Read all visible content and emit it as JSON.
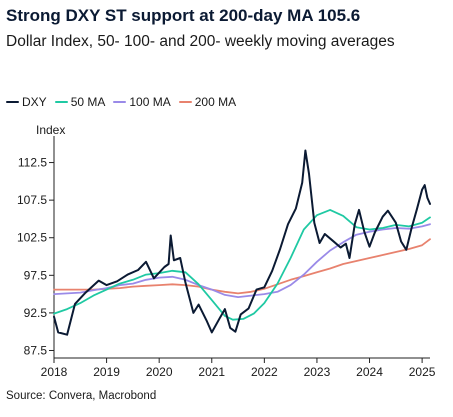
{
  "chart_data": {
    "type": "line",
    "title": "Strong DXY ST support at 200-day MA 105.6",
    "subtitle": "Dollar Index, 50- 100- and 200- weekly moving averages",
    "ylabel": "Index",
    "source": "Source: Convera, Macrobond",
    "ylim": [
      86.5,
      115.5
    ],
    "xlim": [
      2018.0,
      2025.15
    ],
    "y_ticks": [
      "87.5",
      "92.5",
      "97.5",
      "102.5",
      "107.5",
      "112.5"
    ],
    "x_ticks": [
      "2018",
      "2019",
      "2020",
      "2021",
      "2022",
      "2023",
      "2024",
      "2025"
    ],
    "grid": "none",
    "legend_position": "top",
    "series": [
      {
        "name": "DXY",
        "color": "#0b1a33",
        "points": [
          [
            2018.0,
            92.0
          ],
          [
            2018.08,
            89.9
          ],
          [
            2018.25,
            89.6
          ],
          [
            2018.4,
            93.7
          ],
          [
            2018.6,
            95.2
          ],
          [
            2018.85,
            96.8
          ],
          [
            2019.0,
            96.2
          ],
          [
            2019.2,
            96.7
          ],
          [
            2019.4,
            97.6
          ],
          [
            2019.6,
            98.2
          ],
          [
            2019.75,
            99.3
          ],
          [
            2019.9,
            97.1
          ],
          [
            2020.1,
            98.6
          ],
          [
            2020.18,
            99.0
          ],
          [
            2020.22,
            102.8
          ],
          [
            2020.28,
            99.5
          ],
          [
            2020.4,
            99.8
          ],
          [
            2020.5,
            96.5
          ],
          [
            2020.65,
            92.5
          ],
          [
            2020.75,
            93.6
          ],
          [
            2020.9,
            91.5
          ],
          [
            2021.0,
            89.9
          ],
          [
            2021.15,
            91.8
          ],
          [
            2021.25,
            93.0
          ],
          [
            2021.35,
            90.5
          ],
          [
            2021.45,
            90.0
          ],
          [
            2021.55,
            92.3
          ],
          [
            2021.7,
            93.1
          ],
          [
            2021.85,
            95.6
          ],
          [
            2022.0,
            95.9
          ],
          [
            2022.15,
            98.1
          ],
          [
            2022.3,
            101.0
          ],
          [
            2022.45,
            104.3
          ],
          [
            2022.6,
            106.4
          ],
          [
            2022.72,
            109.8
          ],
          [
            2022.78,
            114.1
          ],
          [
            2022.85,
            111.0
          ],
          [
            2022.95,
            104.5
          ],
          [
            2023.05,
            101.8
          ],
          [
            2023.15,
            103.0
          ],
          [
            2023.3,
            102.1
          ],
          [
            2023.45,
            101.2
          ],
          [
            2023.55,
            101.7
          ],
          [
            2023.62,
            99.8
          ],
          [
            2023.72,
            104.3
          ],
          [
            2023.8,
            106.2
          ],
          [
            2023.9,
            103.3
          ],
          [
            2024.0,
            101.3
          ],
          [
            2024.1,
            103.2
          ],
          [
            2024.25,
            105.3
          ],
          [
            2024.35,
            106.1
          ],
          [
            2024.5,
            104.5
          ],
          [
            2024.6,
            102.0
          ],
          [
            2024.7,
            100.9
          ],
          [
            2024.8,
            103.8
          ],
          [
            2024.9,
            106.3
          ],
          [
            2025.0,
            108.9
          ],
          [
            2025.05,
            109.5
          ],
          [
            2025.1,
            107.8
          ],
          [
            2025.15,
            107.0
          ]
        ]
      },
      {
        "name": "50 MA",
        "color": "#1fc9a3",
        "points": [
          [
            2018.0,
            92.4
          ],
          [
            2018.25,
            93.0
          ],
          [
            2018.5,
            93.8
          ],
          [
            2018.75,
            94.8
          ],
          [
            2019.0,
            95.6
          ],
          [
            2019.25,
            96.4
          ],
          [
            2019.5,
            96.9
          ],
          [
            2019.75,
            97.6
          ],
          [
            2020.0,
            97.8
          ],
          [
            2020.25,
            98.1
          ],
          [
            2020.5,
            97.9
          ],
          [
            2020.75,
            96.3
          ],
          [
            2021.0,
            94.2
          ],
          [
            2021.25,
            92.1
          ],
          [
            2021.4,
            91.6
          ],
          [
            2021.6,
            91.7
          ],
          [
            2021.8,
            92.4
          ],
          [
            2022.0,
            93.8
          ],
          [
            2022.25,
            96.4
          ],
          [
            2022.5,
            99.8
          ],
          [
            2022.75,
            103.6
          ],
          [
            2023.0,
            105.5
          ],
          [
            2023.25,
            106.2
          ],
          [
            2023.5,
            105.4
          ],
          [
            2023.75,
            103.9
          ],
          [
            2024.0,
            103.6
          ],
          [
            2024.25,
            103.8
          ],
          [
            2024.5,
            104.2
          ],
          [
            2024.75,
            104.0
          ],
          [
            2025.0,
            104.5
          ],
          [
            2025.15,
            105.2
          ]
        ]
      },
      {
        "name": "100 MA",
        "color": "#9a8ae8",
        "points": [
          [
            2018.0,
            95.0
          ],
          [
            2018.25,
            95.1
          ],
          [
            2018.5,
            95.2
          ],
          [
            2018.75,
            95.5
          ],
          [
            2019.0,
            95.8
          ],
          [
            2019.25,
            96.2
          ],
          [
            2019.5,
            96.4
          ],
          [
            2019.75,
            96.9
          ],
          [
            2020.0,
            97.2
          ],
          [
            2020.25,
            97.3
          ],
          [
            2020.5,
            96.9
          ],
          [
            2020.75,
            96.2
          ],
          [
            2021.0,
            95.6
          ],
          [
            2021.25,
            94.9
          ],
          [
            2021.5,
            94.6
          ],
          [
            2021.75,
            94.8
          ],
          [
            2022.0,
            95.0
          ],
          [
            2022.25,
            95.3
          ],
          [
            2022.5,
            96.2
          ],
          [
            2022.75,
            97.6
          ],
          [
            2023.0,
            99.3
          ],
          [
            2023.25,
            100.8
          ],
          [
            2023.5,
            101.9
          ],
          [
            2023.75,
            102.9
          ],
          [
            2024.0,
            103.3
          ],
          [
            2024.25,
            103.6
          ],
          [
            2024.5,
            103.8
          ],
          [
            2024.75,
            103.7
          ],
          [
            2025.0,
            104.0
          ],
          [
            2025.15,
            104.3
          ]
        ]
      },
      {
        "name": "200 MA",
        "color": "#e8826e",
        "points": [
          [
            2018.0,
            95.6
          ],
          [
            2018.25,
            95.6
          ],
          [
            2018.5,
            95.6
          ],
          [
            2018.75,
            95.6
          ],
          [
            2019.0,
            95.7
          ],
          [
            2019.25,
            95.8
          ],
          [
            2019.5,
            96.0
          ],
          [
            2019.75,
            96.1
          ],
          [
            2020.0,
            96.2
          ],
          [
            2020.25,
            96.3
          ],
          [
            2020.5,
            96.2
          ],
          [
            2020.75,
            96.0
          ],
          [
            2021.0,
            95.6
          ],
          [
            2021.25,
            95.3
          ],
          [
            2021.5,
            95.1
          ],
          [
            2021.75,
            95.3
          ],
          [
            2022.0,
            95.7
          ],
          [
            2022.25,
            96.3
          ],
          [
            2022.5,
            96.9
          ],
          [
            2022.75,
            97.4
          ],
          [
            2023.0,
            97.9
          ],
          [
            2023.25,
            98.4
          ],
          [
            2023.5,
            99.0
          ],
          [
            2023.75,
            99.4
          ],
          [
            2024.0,
            99.8
          ],
          [
            2024.25,
            100.2
          ],
          [
            2024.5,
            100.6
          ],
          [
            2024.75,
            101.0
          ],
          [
            2025.0,
            101.5
          ],
          [
            2025.15,
            102.3
          ]
        ]
      }
    ]
  }
}
